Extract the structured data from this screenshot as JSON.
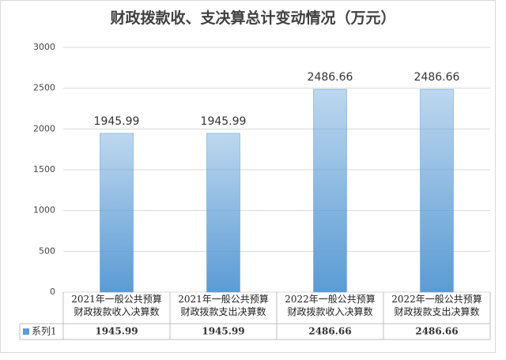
{
  "chart_data": {
    "type": "bar",
    "title": "财政拨款收、支决算总计变动情况（万元）",
    "categories": [
      "2021年一般公共预算\n财政拨款收入决算数",
      "2021年一般公共预算\n财政拨款支出决算数",
      "2022年一般公共预算\n财政拨款收入决算数",
      "2022年一般公共预算\n财政拨款支出决算数"
    ],
    "series": [
      {
        "name": "系列1",
        "color": "#5b9bd5",
        "values": [
          1945.99,
          1945.99,
          2486.66,
          2486.66
        ]
      }
    ],
    "ylim": [
      0,
      3000
    ],
    "yticks": [
      0,
      500,
      1000,
      1500,
      2000,
      2500,
      3000
    ],
    "grid": true,
    "data_labels": true,
    "data_table": true
  }
}
